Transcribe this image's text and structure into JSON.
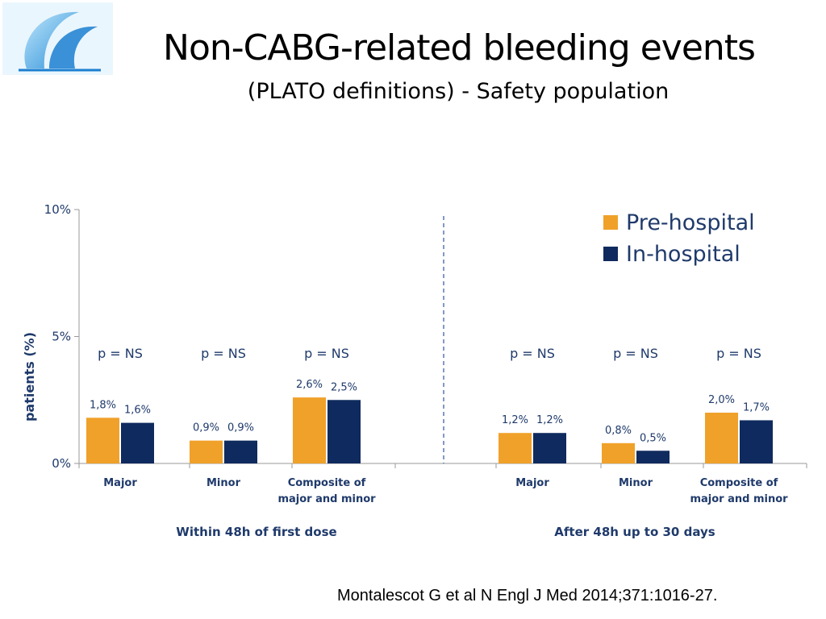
{
  "title": "Non-CABG-related bleeding events",
  "subtitle": "(PLATO definitions) - Safety population",
  "citation": "Montalescot G et al N Engl J Med 2014;371:1016-27.",
  "colors": {
    "pre_hospital": "#f0a12a",
    "in_hospital": "#0f2a5e",
    "text": "#1f3a6b",
    "axis": "#9a9a9a",
    "divider": "#2f55a4"
  },
  "chart_data": {
    "type": "bar",
    "ylabel": "patients (%)",
    "ylim": [
      0,
      10
    ],
    "yticks": [
      {
        "value": 0,
        "label": "0%"
      },
      {
        "value": 5,
        "label": "5%"
      },
      {
        "value": 10,
        "label": "10%"
      }
    ],
    "legend": [
      "Pre-hospital",
      "In-hospital"
    ],
    "legend_position": "top-right",
    "series": [
      {
        "name": "Pre-hospital",
        "values": [
          1.8,
          0.9,
          2.6,
          1.2,
          0.8,
          2.0
        ],
        "labels": [
          "1,8%",
          "0,9%",
          "2,6%",
          "1,2%",
          "0,8%",
          "2,0%"
        ]
      },
      {
        "name": "In-hospital",
        "values": [
          1.6,
          0.9,
          2.5,
          1.2,
          0.5,
          1.7
        ],
        "labels": [
          "1,6%",
          "0,9%",
          "2,5%",
          "1,2%",
          "0,5%",
          "1,7%"
        ]
      }
    ],
    "groups": [
      {
        "label": "Within 48h of first dose",
        "categories": [
          {
            "label": [
              "Major"
            ],
            "p": "p = NS"
          },
          {
            "label": [
              "Minor"
            ],
            "p": "p = NS"
          },
          {
            "label": [
              "Composite of",
              "major and minor"
            ],
            "p": "p = NS"
          }
        ]
      },
      {
        "label": "After 48h up to 30 days",
        "categories": [
          {
            "label": [
              "Major"
            ],
            "p": "p = NS"
          },
          {
            "label": [
              "Minor"
            ],
            "p": "p = NS"
          },
          {
            "label": [
              "Composite of",
              "major and minor"
            ],
            "p": "p = NS"
          }
        ]
      }
    ]
  }
}
